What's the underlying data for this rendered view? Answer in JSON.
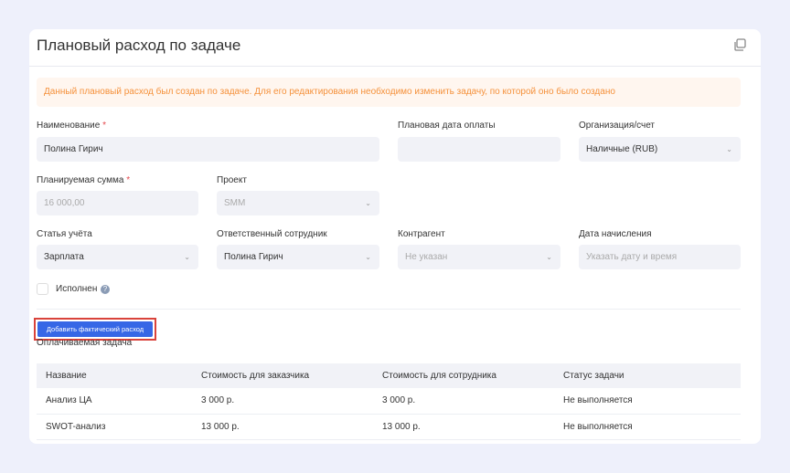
{
  "title": "Плановый расход по задаче",
  "alert": "Данный плановый расход был создан по задаче. Для его редактирования необходимо изменить задачу, по которой оно было создано",
  "fields": {
    "name": {
      "label": "Наименование",
      "required": "*",
      "value": "Полина Гирич"
    },
    "pay_date": {
      "label": "Плановая дата оплаты",
      "value": ""
    },
    "org": {
      "label": "Организация/счет",
      "value": "Наличные (RUB)"
    },
    "amount": {
      "label": "Планируемая сумма",
      "required": "*",
      "value": "16 000,00"
    },
    "project": {
      "label": "Проект",
      "value": "SMM"
    },
    "article": {
      "label": "Статья учёта",
      "value": "Зарплата"
    },
    "employee": {
      "label": "Ответственный сотрудник",
      "value": "Полина Гирич"
    },
    "contractor": {
      "label": "Контрагент",
      "value": "Не указан"
    },
    "accrual": {
      "label": "Дата начисления",
      "placeholder": "Указать дату и время"
    }
  },
  "done": {
    "label": "Исполнен",
    "checked": false
  },
  "add_button": "Добавить фактический расход",
  "section": "Оплачиваемая задача",
  "table": {
    "headers": [
      "Название",
      "Стоимость для заказчика",
      "Стоимость для сотрудника",
      "Статус задачи"
    ],
    "rows": [
      [
        "Анализ ЦА",
        "3 000 р.",
        "3 000 р.",
        "Не выполняется"
      ],
      [
        "SWOT-анализ",
        "13 000 р.",
        "13 000 р.",
        "Не выполняется"
      ]
    ]
  }
}
